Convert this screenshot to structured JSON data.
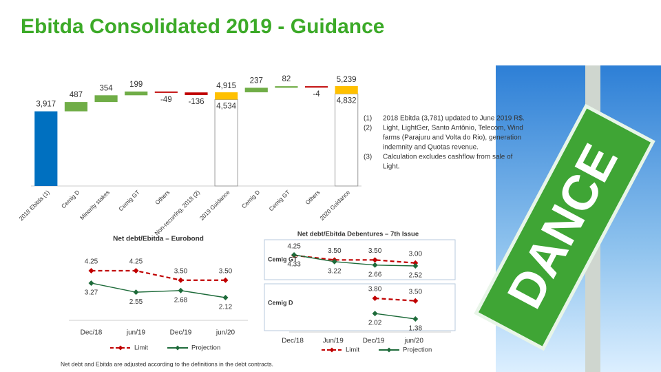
{
  "title": "Ebitda Consolidated 2019 - Guidance",
  "chart_data": [
    {
      "type": "waterfall",
      "categories": [
        "2018 Ebitda (1)",
        "Cemig D",
        "Minority stakes",
        "Cemig GT",
        "Others",
        "Non-recurring, 2018 (2)",
        "2019 Guidance",
        "Cemig D",
        "Cemig GT",
        "Others",
        "2020 Guidance"
      ],
      "values": [
        3917,
        487,
        354,
        199,
        -49,
        -136,
        [
          4534,
          4915
        ],
        237,
        82,
        -4,
        [
          4832,
          5239
        ]
      ],
      "value_labels": [
        "3,917",
        "487",
        "354",
        "199",
        "-49",
        "-136",
        [
          "4,534",
          "4,915"
        ],
        "237",
        "82",
        "-4",
        [
          "4,832",
          "5,239"
        ]
      ],
      "colors": {
        "start": "#0070c0",
        "increase": "#70ad47",
        "decrease": "#c00000",
        "guidance": "#ffc000"
      }
    },
    {
      "type": "line",
      "title": "Net debt/Ebitda – Eurobond",
      "categories": [
        "Dec/18",
        "jun/19",
        "Dec/19",
        "jun/20"
      ],
      "series": [
        {
          "name": "Limit",
          "color": "#c00000",
          "style": "dashed",
          "values": [
            4.25,
            4.25,
            3.5,
            3.5
          ],
          "value_labels": [
            "4.25",
            "4.25",
            "3.50",
            "3.50"
          ]
        },
        {
          "name": "Projection",
          "color": "#1e6b3a",
          "style": "solid",
          "values": [
            3.27,
            2.55,
            2.68,
            2.12
          ],
          "value_labels": [
            "3.27",
            "2.55",
            "2.68",
            "2.12"
          ]
        }
      ]
    },
    {
      "type": "panel-line",
      "title": "Net debt/Ebitda   Debentures – 7th Issue",
      "categories": [
        "Dec/18",
        "Jun/19",
        "Dec/19",
        "jun/20"
      ],
      "panels": [
        {
          "name": "Cemig GT",
          "series": [
            {
              "name": "Limit",
              "color": "#c00000",
              "style": "dashed",
              "values": [
                4.25,
                3.5,
                3.5,
                3.0
              ],
              "value_labels": [
                "4.25",
                "3.50",
                "3.50",
                "3.00"
              ]
            },
            {
              "name": "Projection",
              "color": "#1e6b3a",
              "style": "solid",
              "values": [
                4.33,
                3.22,
                2.66,
                2.52
              ],
              "value_labels": [
                "4.33",
                "3.22",
                "2.66",
                "2.52"
              ]
            }
          ]
        },
        {
          "name": "Cemig D",
          "series": [
            {
              "name": "Limit",
              "color": "#c00000",
              "style": "dashed",
              "values": [
                null,
                null,
                3.8,
                3.5
              ],
              "value_labels": [
                null,
                null,
                "3.80",
                "3.50"
              ]
            },
            {
              "name": "Projection",
              "color": "#1e6b3a",
              "style": "solid",
              "values": [
                null,
                null,
                2.02,
                1.38
              ],
              "value_labels": [
                null,
                null,
                "2.02",
                "1.38"
              ]
            }
          ]
        }
      ]
    }
  ],
  "notes": [
    {
      "marker": "(1)",
      "lines": [
        "2018 Ebitda (3,781) updated to June 2019 R$."
      ]
    },
    {
      "marker": "(2)",
      "lines": [
        "Light, LightGer, Santo Antônio, Telecom, Wind",
        "farms (Parajuru and Volta do Rio), generation",
        "indemnity and Quotas revenue."
      ]
    },
    {
      "marker": "(3)",
      "lines": [
        "Calculation excludes cashflow from sale of",
        "Light."
      ]
    }
  ],
  "footnote": "Net debt and Ebitda are adjusted according to the definitions in the debt contracts.",
  "sign_text": "DANCE"
}
